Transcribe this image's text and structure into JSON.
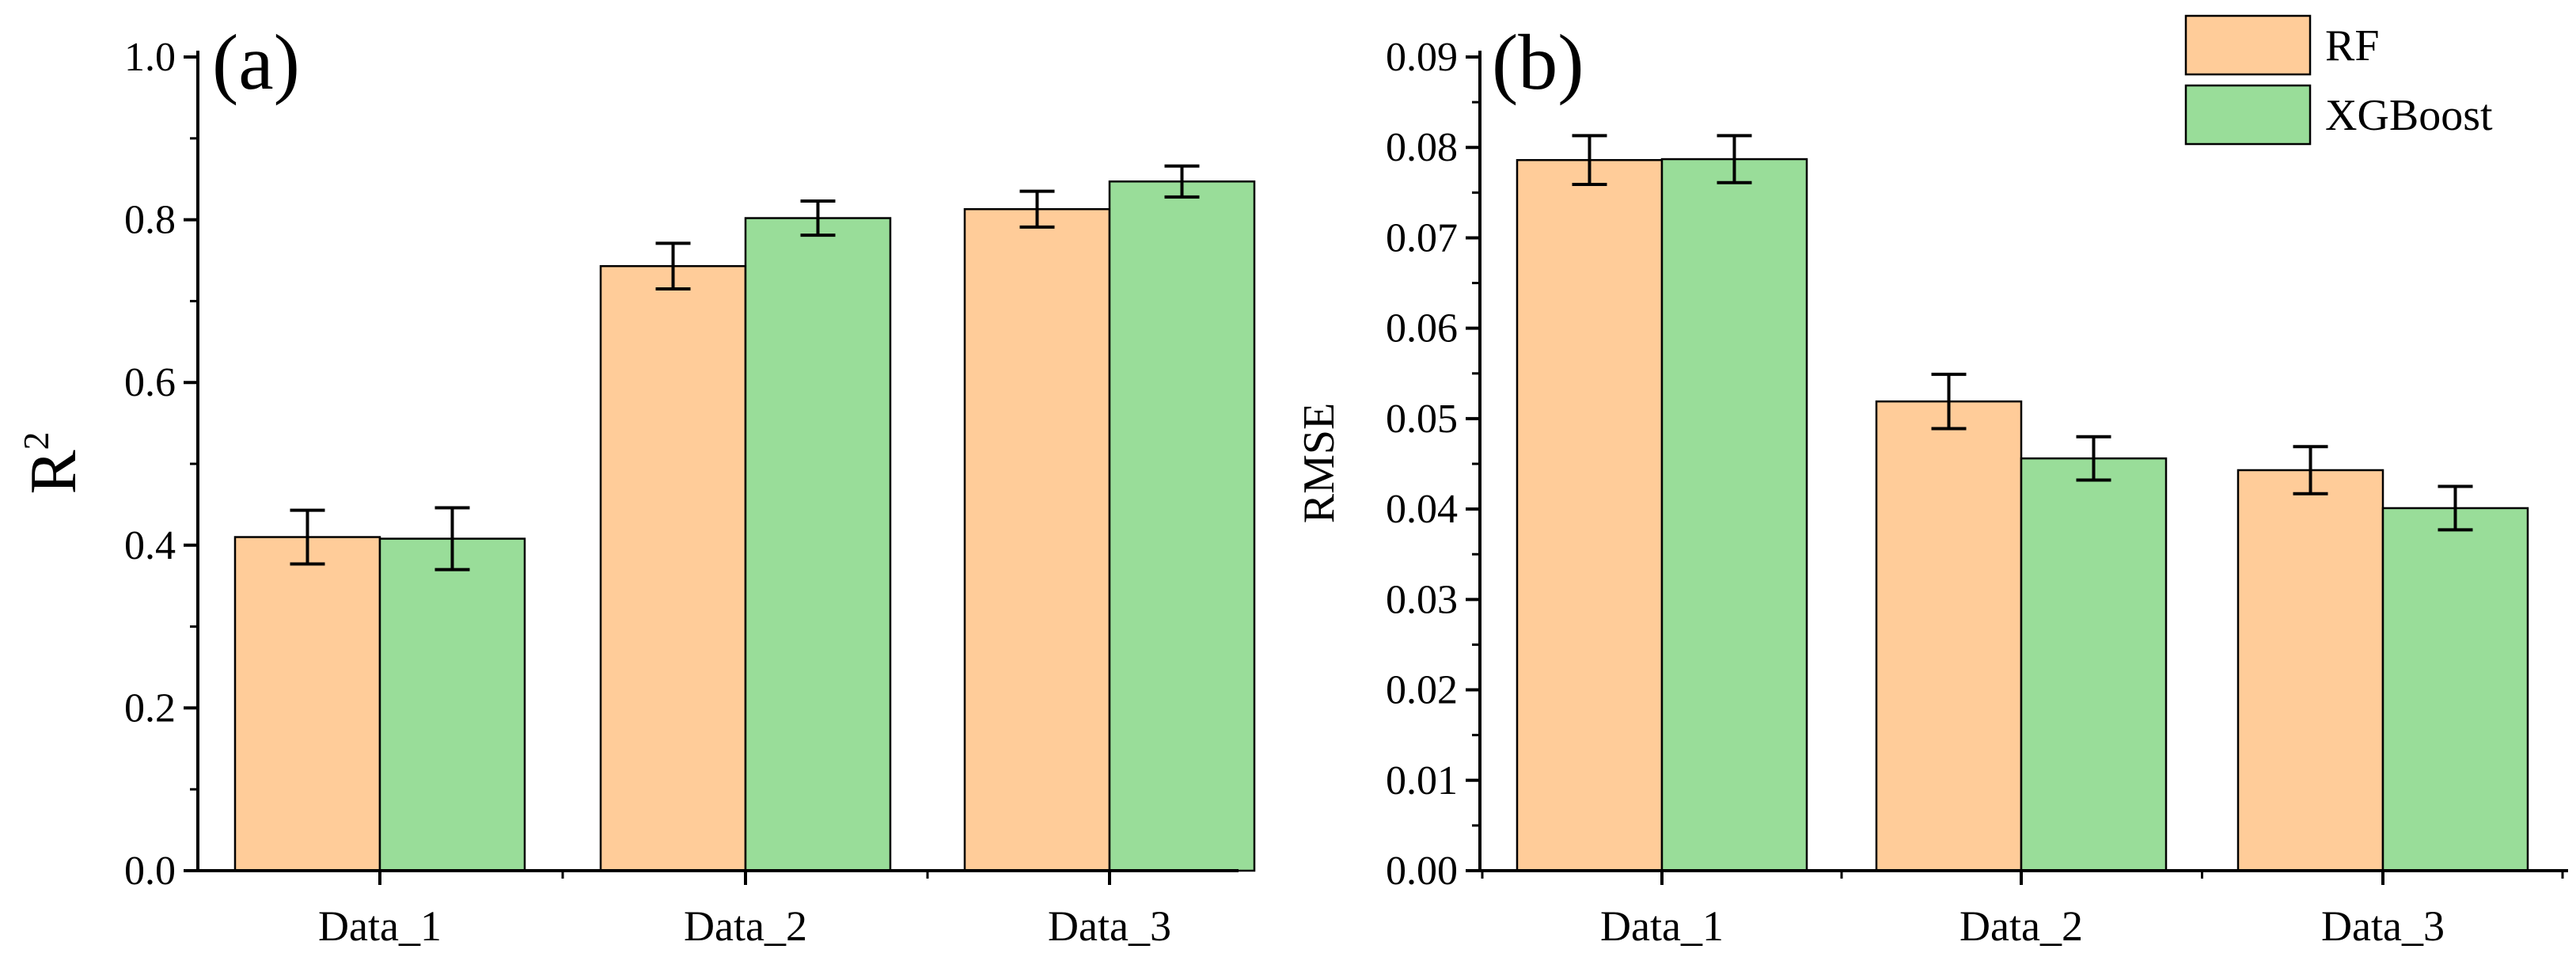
{
  "chart_data": [
    {
      "type": "bar",
      "panel_label": "(a)",
      "title": "",
      "xlabel": "",
      "ylabel": "R",
      "ylabel_superscript": "2",
      "categories": [
        "Data_1",
        "Data_2",
        "Data_3"
      ],
      "ylim": [
        0,
        1.0
      ],
      "yticks": [
        0.0,
        0.2,
        0.4,
        0.6,
        0.8,
        1.0
      ],
      "ytick_labels": [
        "0.0",
        "0.2",
        "0.4",
        "0.6",
        "0.8",
        "1.0"
      ],
      "series": [
        {
          "name": "RF",
          "color": "#FFCC99",
          "values": [
            0.41,
            0.743,
            0.813
          ],
          "errors": [
            0.033,
            0.028,
            0.022
          ]
        },
        {
          "name": "XGBoost",
          "color": "#99DD99",
          "values": [
            0.408,
            0.802,
            0.847
          ],
          "errors": [
            0.038,
            0.021,
            0.019
          ]
        }
      ]
    },
    {
      "type": "bar",
      "panel_label": "(b)",
      "title": "",
      "xlabel": "",
      "ylabel": "RMSE",
      "categories": [
        "Data_1",
        "Data_2",
        "Data_3"
      ],
      "ylim": [
        0,
        0.09
      ],
      "yticks": [
        0.0,
        0.01,
        0.02,
        0.03,
        0.04,
        0.05,
        0.06,
        0.07,
        0.08,
        0.09
      ],
      "ytick_labels": [
        "0.00",
        "0.01",
        "0.02",
        "0.03",
        "0.04",
        "0.05",
        "0.06",
        "0.07",
        "0.08",
        "0.09"
      ],
      "series": [
        {
          "name": "RF",
          "color": "#FFCC99",
          "values": [
            0.0786,
            0.0519,
            0.0443
          ],
          "errors": [
            0.0027,
            0.003,
            0.0026
          ]
        },
        {
          "name": "XGBoost",
          "color": "#99DD99",
          "values": [
            0.0787,
            0.0456,
            0.0401
          ],
          "errors": [
            0.0026,
            0.0024,
            0.0024
          ]
        }
      ]
    }
  ],
  "legend": {
    "position": "top-right",
    "items": [
      {
        "label": "RF",
        "color": "#FFCC99"
      },
      {
        "label": "XGBoost",
        "color": "#99DD99"
      }
    ]
  }
}
